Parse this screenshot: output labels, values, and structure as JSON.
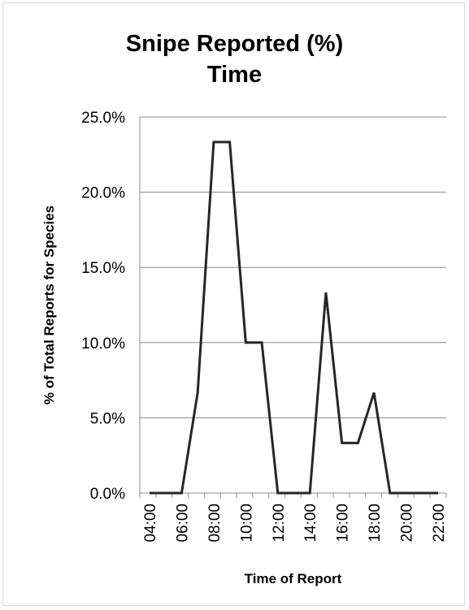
{
  "chart_data": {
    "type": "line",
    "title": [
      "Snipe Reported (%)",
      "Time"
    ],
    "xlabel": "Time of Report",
    "ylabel": "% of Total Reports for Species",
    "ylim": [
      0,
      0.25
    ],
    "y_ticks": [
      "0.0%",
      "5.0%",
      "10.0%",
      "15.0%",
      "20.0%",
      "25.0%"
    ],
    "x_ticks": [
      "04:00",
      "06:00",
      "08:00",
      "10:00",
      "12:00",
      "14:00",
      "16:00",
      "18:00",
      "20:00",
      "22:00"
    ],
    "grid": true,
    "line_color": "#262626",
    "grid_color": "#8c8c8c",
    "series": [
      {
        "x": [
          "04:00",
          "05:00",
          "06:00",
          "07:00",
          "08:00",
          "09:00",
          "10:00",
          "11:00",
          "12:00",
          "13:00",
          "14:00",
          "15:00",
          "16:00",
          "17:00",
          "18:00",
          "19:00",
          "20:00",
          "21:00",
          "22:00"
        ],
        "values": [
          0,
          0,
          0,
          0.0667,
          0.2333,
          0.2333,
          0.1,
          0.1,
          0,
          0,
          0,
          0.1333,
          0.0333,
          0.0333,
          0.0667,
          0,
          0,
          0,
          0
        ]
      }
    ]
  }
}
